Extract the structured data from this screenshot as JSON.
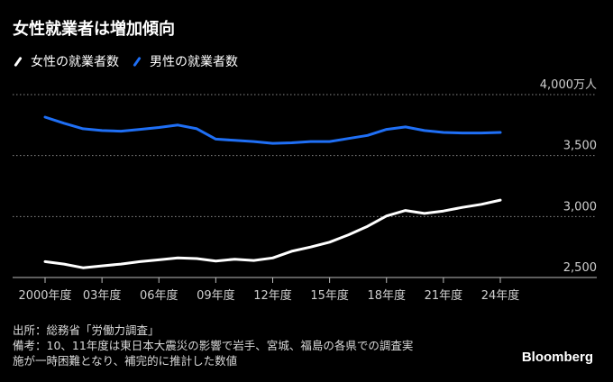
{
  "title": "女性就業者は増加傾向",
  "legend": [
    {
      "label": "女性の就業者数",
      "color": "#ffffff"
    },
    {
      "label": "男性の就業者数",
      "color": "#1f6ff5"
    }
  ],
  "notes": {
    "source": "出所：総務省「労働力調査」",
    "remark_1": "備考：10、11年度は東日本大震災の影響で岩手、宮城、福島の各県での調査実",
    "remark_2": "施が一時困難となり、補完的に推計した数値"
  },
  "brand": "Bloomberg",
  "chart_data": {
    "type": "line",
    "x": [
      2000,
      2001,
      2002,
      2003,
      2004,
      2005,
      2006,
      2007,
      2008,
      2009,
      2010,
      2011,
      2012,
      2013,
      2014,
      2015,
      2016,
      2017,
      2018,
      2019,
      2020,
      2021,
      2022,
      2023,
      2024
    ],
    "x_tick_labels": [
      {
        "x": 2000,
        "label": "2000年度"
      },
      {
        "x": 2003,
        "label": "03年度"
      },
      {
        "x": 2006,
        "label": "06年度"
      },
      {
        "x": 2009,
        "label": "09年度"
      },
      {
        "x": 2012,
        "label": "12年度"
      },
      {
        "x": 2015,
        "label": "15年度"
      },
      {
        "x": 2018,
        "label": "18年度"
      },
      {
        "x": 2021,
        "label": "21年度"
      },
      {
        "x": 2024,
        "label": "24年度"
      }
    ],
    "y_ticks": [
      {
        "value": 2500,
        "label": "2,500"
      },
      {
        "value": 3000,
        "label": "3,000"
      },
      {
        "value": 3500,
        "label": "3,500"
      },
      {
        "value": 4000,
        "label": "4,000万人"
      }
    ],
    "ylim": [
      2500,
      4000
    ],
    "grid": true,
    "series": [
      {
        "name": "女性の就業者数",
        "color": "#ffffff",
        "values": [
          2630,
          2610,
          2580,
          2595,
          2610,
          2630,
          2645,
          2660,
          2655,
          2635,
          2650,
          2640,
          2660,
          2715,
          2750,
          2790,
          2850,
          2920,
          3005,
          3050,
          3025,
          3045,
          3075,
          3100,
          3135
        ]
      },
      {
        "name": "男性の就業者数",
        "color": "#1f6ff5",
        "values": [
          3815,
          3765,
          3720,
          3705,
          3700,
          3715,
          3730,
          3750,
          3720,
          3635,
          3625,
          3615,
          3600,
          3605,
          3615,
          3615,
          3640,
          3665,
          3715,
          3735,
          3705,
          3690,
          3685,
          3685,
          3690
        ]
      }
    ]
  }
}
